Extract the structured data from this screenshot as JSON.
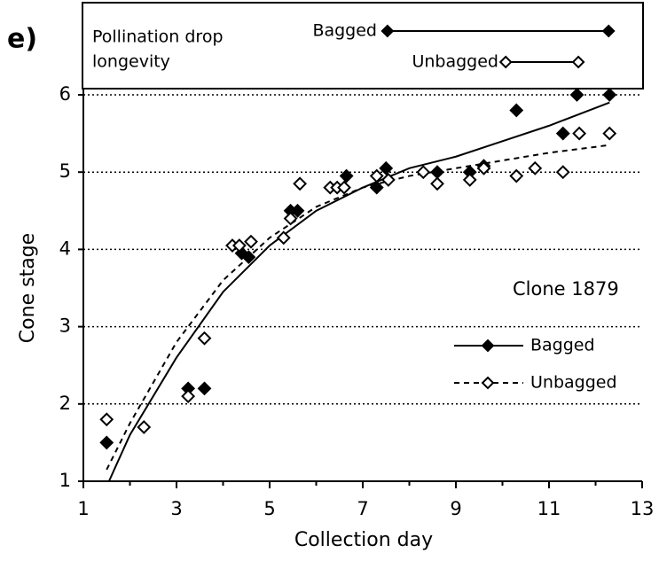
{
  "chart_data": {
    "type": "scatter",
    "panel_label": "e)",
    "xlabel": "Collection day",
    "ylabel": "Cone stage",
    "annotation": "Clone 1879",
    "longevity_label": [
      "Pollination drop",
      "longevity"
    ],
    "xlim": [
      1,
      13
    ],
    "xticks": [
      1,
      3,
      5,
      7,
      9,
      11,
      13
    ],
    "xminor": [
      2,
      4,
      6,
      8,
      10,
      12
    ],
    "ylim": [
      1,
      6
    ],
    "yticks": [
      1,
      2,
      3,
      4,
      5,
      6
    ],
    "grid": true,
    "series": [
      {
        "name": "Bagged",
        "color": "#000000",
        "filled": true,
        "dash": false,
        "x": [
          1.5,
          3.25,
          3.6,
          4.4,
          4.55,
          5.45,
          5.6,
          6.65,
          7.3,
          7.5,
          8.6,
          9.3,
          9.6,
          10.3,
          11.3,
          11.6,
          12.3
        ],
        "values": [
          1.5,
          2.2,
          2.2,
          3.95,
          3.9,
          4.5,
          4.5,
          4.95,
          4.8,
          5.05,
          5.0,
          5.0,
          5.08,
          5.8,
          5.5,
          6.0,
          6.0
        ],
        "fit": {
          "x": [
            1.55,
            2,
            3,
            4,
            5,
            6,
            7,
            8,
            9,
            10,
            11,
            12.3
          ],
          "values": [
            1.0,
            1.6,
            2.6,
            3.45,
            4.05,
            4.5,
            4.8,
            5.05,
            5.2,
            5.4,
            5.6,
            5.9
          ]
        },
        "longevity": [
          7.53,
          12.28
        ]
      },
      {
        "name": "Unbagged",
        "color": "#000000",
        "filled": false,
        "dash": true,
        "x": [
          1.5,
          2.3,
          3.25,
          3.6,
          4.2,
          4.35,
          4.6,
          5.3,
          5.45,
          5.65,
          6.3,
          6.45,
          6.6,
          7.3,
          7.55,
          8.3,
          8.6,
          9.3,
          9.6,
          10.3,
          10.7,
          11.3,
          11.65,
          12.3
        ],
        "values": [
          1.8,
          1.7,
          2.1,
          2.85,
          4.05,
          4.05,
          4.1,
          4.15,
          4.4,
          4.85,
          4.8,
          4.8,
          4.8,
          4.95,
          4.9,
          5.0,
          4.85,
          4.9,
          5.05,
          4.95,
          5.05,
          5.0,
          5.5,
          5.5
        ],
        "fit": {
          "x": [
            1.5,
            2,
            3,
            4,
            5,
            6,
            7,
            8,
            9,
            10,
            11,
            12.3
          ],
          "values": [
            1.15,
            1.75,
            2.8,
            3.6,
            4.15,
            4.55,
            4.8,
            4.95,
            5.05,
            5.15,
            5.25,
            5.35
          ]
        },
        "longevity": [
          10.07,
          11.63
        ]
      }
    ]
  }
}
